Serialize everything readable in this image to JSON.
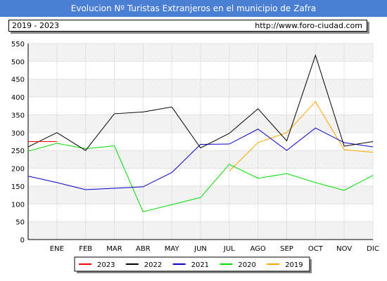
{
  "header": {
    "title": "Evolucion Nº Turistas Extranjeros en el municipio de Zafra",
    "range": "2019 - 2023",
    "url": "http://www.foro-ciudad.com"
  },
  "colors": {
    "title_bg": "#4a7fd4",
    "plot_band": "#f2f2f2",
    "grid": "#cccccc"
  },
  "chart_data": {
    "type": "line",
    "title": "",
    "xlabel": "",
    "ylabel": "",
    "categories": [
      "ENE",
      "FEB",
      "MAR",
      "ABR",
      "MAY",
      "JUN",
      "JUL",
      "AGO",
      "SEP",
      "OCT",
      "NOV",
      "DIC"
    ],
    "ylim": [
      0,
      550
    ],
    "yticks": [
      0,
      50,
      100,
      150,
      200,
      250,
      300,
      350,
      400,
      450,
      500,
      550
    ],
    "grid": true,
    "legend_position": "bottom",
    "series": [
      {
        "name": "2023",
        "color": "#ff0000",
        "points": [
          [
            -1,
            275
          ],
          [
            0,
            275
          ]
        ]
      },
      {
        "name": "2022",
        "color": "#000000",
        "points": [
          [
            -1,
            260
          ],
          [
            0,
            300
          ],
          [
            1,
            250
          ],
          [
            2,
            353
          ],
          [
            3,
            358
          ],
          [
            4,
            372
          ],
          [
            5,
            257
          ],
          [
            6,
            298
          ],
          [
            7,
            367
          ],
          [
            8,
            277
          ],
          [
            9,
            517
          ],
          [
            10,
            262
          ],
          [
            11,
            275
          ]
        ]
      },
      {
        "name": "2021",
        "color": "#0000cc",
        "points": [
          [
            -1,
            178
          ],
          [
            0,
            160
          ],
          [
            1,
            140
          ],
          [
            2,
            144
          ],
          [
            3,
            148
          ],
          [
            4,
            188
          ],
          [
            5,
            267
          ],
          [
            6,
            268
          ],
          [
            7,
            310
          ],
          [
            8,
            250
          ],
          [
            9,
            313
          ],
          [
            10,
            272
          ],
          [
            11,
            260
          ]
        ]
      },
      {
        "name": "2020",
        "color": "#00dd00",
        "points": [
          [
            -1,
            248
          ],
          [
            0,
            270
          ],
          [
            1,
            255
          ],
          [
            2,
            263
          ],
          [
            3,
            78
          ],
          [
            4,
            98
          ],
          [
            5,
            118
          ],
          [
            6,
            211
          ],
          [
            7,
            172
          ],
          [
            8,
            185
          ],
          [
            9,
            160
          ],
          [
            10,
            138
          ],
          [
            11,
            180
          ]
        ]
      },
      {
        "name": "2019",
        "color": "#ffa500",
        "points": [
          [
            6,
            192
          ],
          [
            7,
            272
          ],
          [
            8,
            300
          ],
          [
            9,
            387
          ],
          [
            10,
            252
          ],
          [
            11,
            245
          ]
        ]
      }
    ]
  }
}
